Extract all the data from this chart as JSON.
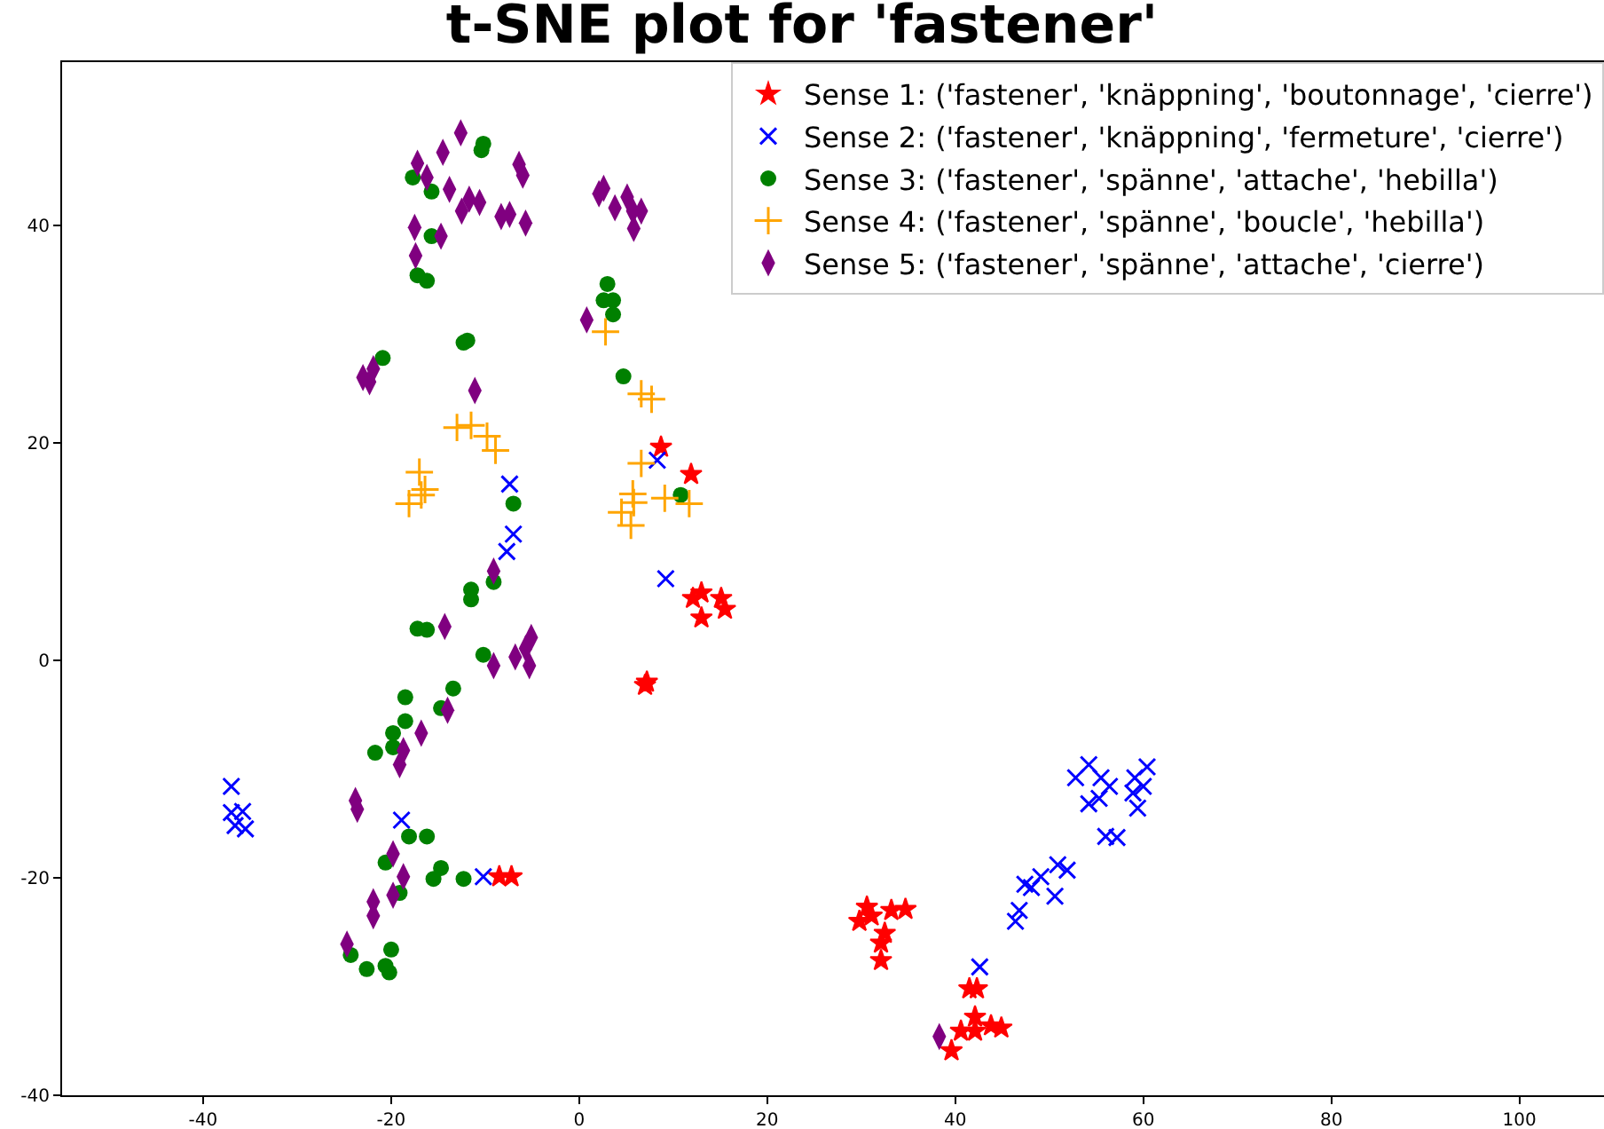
{
  "chart_data": {
    "type": "scatter",
    "title": "t-SNE plot for 'fastener'",
    "xlim": [
      -55,
      109
    ],
    "xticks": [
      -40,
      -20,
      0,
      20,
      40,
      60,
      80,
      100
    ],
    "ylim": [
      -40,
      55
    ],
    "yticks": [
      -40,
      -20,
      0,
      20,
      40
    ],
    "legend": "top right",
    "series": [
      {
        "name": "Sense 1: ('fastener', 'knäppning', 'boutonnage', 'cierre')",
        "color": "#ff0000",
        "marker": "star",
        "x": [
          8.7,
          11.9,
          12.1,
          13.0,
          13.0,
          15.1,
          15.5,
          7.0,
          7.2,
          -8.5,
          -7.2,
          30.6,
          31.1,
          29.8,
          33.2,
          34.7,
          32.5,
          32.1,
          32.1,
          41.5,
          42.3,
          42.1,
          40.6,
          42.1,
          43.8,
          44.9,
          39.6
        ],
        "values": [
          19.6,
          17.1,
          5.7,
          6.2,
          3.9,
          5.7,
          4.7,
          -2.3,
          -2.0,
          -19.9,
          -19.9,
          -22.7,
          -23.5,
          -24.0,
          -23.0,
          -22.9,
          -25.1,
          -26.0,
          -27.6,
          -30.2,
          -30.2,
          -32.8,
          -34.1,
          -34.1,
          -33.6,
          -33.8,
          -35.9
        ]
      },
      {
        "name": "Sense 2: ('fastener', 'knäppning', 'fermeture', 'cierre')",
        "color": "#0000ff",
        "marker": "x",
        "x": [
          -37.0,
          -37.0,
          -35.8,
          -36.6,
          -35.5,
          -18.9,
          -10.2,
          -7.4,
          -7.0,
          -7.7,
          8.3,
          9.2,
          42.6,
          46.4,
          46.8,
          47.4,
          48.1,
          49.1,
          50.6,
          50.9,
          51.9,
          56.0,
          57.2,
          54.2,
          55.3,
          52.8,
          54.2,
          55.5,
          56.4,
          59.1,
          60.4,
          60.0,
          58.9,
          59.4
        ],
        "values": [
          -11.6,
          -14.0,
          -13.9,
          -15.2,
          -15.5,
          -14.7,
          -19.9,
          16.2,
          11.6,
          10.0,
          18.4,
          7.5,
          -28.2,
          -24.0,
          -23.0,
          -20.6,
          -20.9,
          -19.9,
          -21.7,
          -18.8,
          -19.3,
          -16.2,
          -16.3,
          -13.2,
          -12.7,
          -10.8,
          -9.6,
          -10.8,
          -11.6,
          -10.8,
          -9.8,
          -11.6,
          -12.2,
          -13.6
        ]
      },
      {
        "name": "Sense 3: ('fastener', 'spänne', 'attache', 'hebilla')",
        "color": "#008000",
        "marker": "circle",
        "x": [
          -10.2,
          -10.4,
          -17.7,
          -15.7,
          -15.7,
          -17.2,
          -16.2,
          3.0,
          2.6,
          3.6,
          3.6,
          -12.3,
          -11.9,
          -20.9,
          4.7,
          -7.0,
          10.8,
          -11.5,
          -11.5,
          -9.1,
          -17.2,
          -16.2,
          -10.2,
          -13.4,
          -18.5,
          -14.7,
          -18.5,
          -19.8,
          -19.8,
          -21.7,
          -18.1,
          -16.2,
          -20.6,
          -14.7,
          -15.5,
          -12.3,
          -19.1,
          -24.3,
          -20.0,
          -22.6,
          -20.6,
          -20.2
        ],
        "values": [
          47.5,
          46.9,
          44.4,
          43.1,
          39.0,
          35.4,
          34.9,
          34.6,
          33.1,
          33.1,
          31.8,
          29.2,
          29.4,
          27.8,
          26.1,
          14.4,
          15.2,
          6.5,
          5.6,
          7.2,
          2.9,
          2.8,
          0.5,
          -2.6,
          -3.4,
          -4.4,
          -5.6,
          -6.7,
          -8.0,
          -8.5,
          -16.2,
          -16.2,
          -18.6,
          -19.1,
          -20.1,
          -20.1,
          -21.4,
          -27.1,
          -26.6,
          -28.4,
          -28.1,
          -28.7
        ]
      },
      {
        "name": "Sense 4: ('fastener', 'spänne', 'boucle', 'hebilla')",
        "color": "#ffa500",
        "marker": "cross",
        "x": [
          2.8,
          6.6,
          7.7,
          -13.0,
          -11.5,
          -9.8,
          -8.9,
          -17.0,
          -16.4,
          -16.8,
          -18.1,
          6.6,
          5.7,
          5.8,
          4.5,
          5.5,
          9.1,
          11.7
        ],
        "values": [
          30.2,
          24.5,
          24.0,
          21.4,
          21.6,
          20.6,
          19.3,
          17.3,
          15.7,
          15.2,
          14.4,
          18.1,
          15.3,
          14.5,
          13.6,
          12.4,
          14.9,
          14.4
        ]
      },
      {
        "name": "Sense 5: ('fastener', 'spänne', 'attache', 'cierre')",
        "color": "#800080",
        "marker": "diamond",
        "x": [
          -12.6,
          -14.5,
          -17.2,
          -16.2,
          -13.8,
          -11.7,
          -10.6,
          -12.5,
          -8.3,
          -7.4,
          -5.7,
          -17.5,
          -14.7,
          -17.4,
          -6.4,
          -6.0,
          2.1,
          2.6,
          3.8,
          5.1,
          5.7,
          6.6,
          5.8,
          0.8,
          -23.0,
          -22.3,
          -21.9,
          -11.1,
          -9.1,
          -14.3,
          -6.8,
          -5.7,
          -5.1,
          -5.3,
          -9.1,
          -14.0,
          -16.8,
          -18.7,
          -19.1,
          -23.8,
          -23.6,
          -19.8,
          -18.7,
          -19.8,
          -21.9,
          -21.9,
          -24.7,
          38.3
        ],
        "values": [
          48.5,
          46.7,
          45.7,
          44.4,
          43.3,
          42.4,
          42.1,
          41.3,
          40.8,
          41.0,
          40.2,
          39.8,
          39.0,
          37.2,
          45.6,
          44.6,
          42.9,
          43.4,
          41.6,
          42.6,
          41.3,
          41.3,
          39.7,
          31.3,
          26.0,
          25.6,
          26.8,
          24.8,
          8.2,
          3.1,
          0.3,
          1.1,
          2.1,
          -0.5,
          -0.5,
          -4.6,
          -6.7,
          -8.3,
          -9.6,
          -12.9,
          -13.7,
          -17.8,
          -19.9,
          -21.6,
          -22.2,
          -23.5,
          -26.1,
          -34.6
        ]
      }
    ]
  }
}
